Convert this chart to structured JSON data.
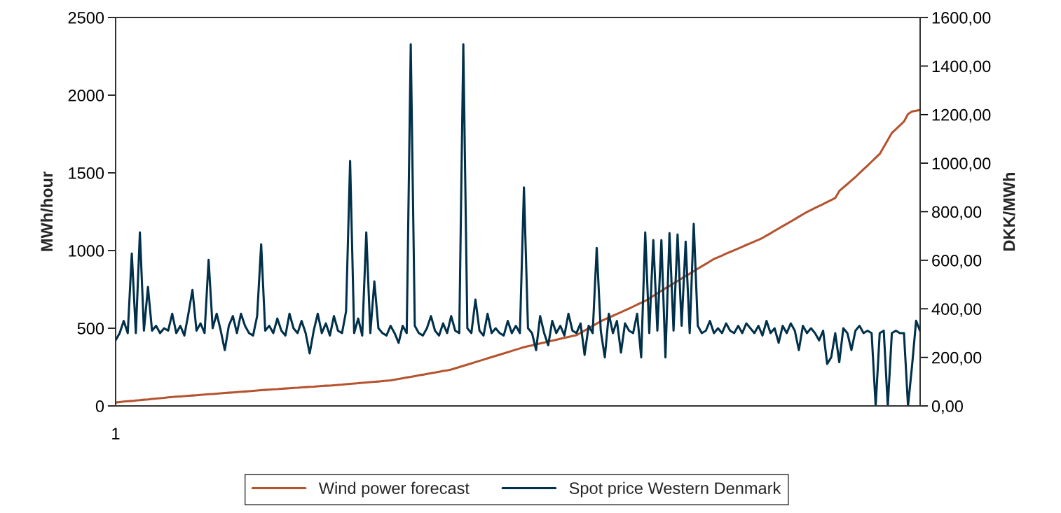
{
  "chart_data": {
    "type": "line",
    "ylabel": "MWh/hour",
    "y2label": "DKK/MWh",
    "categories": [
      "1",
      null,
      null,
      null,
      null,
      null,
      null,
      null,
      null,
      null,
      null,
      null,
      null,
      null,
      null,
      null,
      null,
      null,
      null,
      null,
      null,
      null,
      null,
      null,
      null,
      null,
      null,
      null,
      null,
      null,
      null,
      null,
      null,
      null,
      null,
      null,
      null,
      null,
      null,
      null,
      null,
      null,
      null,
      null,
      null,
      null,
      null,
      null,
      null,
      null,
      null,
      null,
      null,
      null,
      null,
      null,
      null,
      null,
      null,
      null,
      null,
      null,
      null,
      null,
      null,
      null,
      null,
      null,
      null,
      null,
      null,
      null,
      null,
      null,
      null,
      null,
      null,
      null,
      null,
      null,
      null,
      null,
      null,
      null,
      null,
      null,
      null,
      null,
      null,
      null,
      null,
      null,
      null,
      null,
      null,
      null,
      null,
      null,
      null,
      null,
      null,
      null,
      null,
      null,
      null,
      null,
      null,
      null,
      null,
      null,
      null,
      null,
      null,
      null,
      null,
      null,
      null,
      null,
      null,
      null,
      null,
      null,
      null,
      null,
      null,
      null,
      null,
      null,
      null,
      null,
      null,
      null,
      null,
      null,
      null,
      null,
      null,
      null,
      null,
      null,
      null,
      null,
      null,
      null,
      null,
      null,
      null,
      null,
      null,
      null,
      null,
      null,
      null,
      null,
      null,
      null,
      null,
      null,
      null,
      null,
      null,
      null,
      null,
      null,
      null,
      null,
      null,
      null,
      null,
      null,
      null,
      null,
      null,
      null,
      null,
      null,
      null,
      null,
      null,
      null,
      null,
      null,
      null,
      null,
      null,
      null,
      null,
      null,
      null,
      null,
      null,
      null,
      null,
      null,
      null,
      null,
      null,
      null,
      null,
      null
    ],
    "series": [
      {
        "name": "Wind power forecast",
        "color": "#b5532f",
        "values": [
          22,
          25,
          28,
          30,
          32,
          35,
          37,
          40,
          42,
          45,
          47,
          50,
          52,
          55,
          57,
          60,
          61,
          63,
          65,
          67,
          69,
          71,
          73,
          75,
          77,
          79,
          81,
          83,
          85,
          87,
          89,
          91,
          93,
          95,
          97,
          99,
          101,
          103,
          105,
          107,
          108,
          110,
          112,
          114,
          116,
          117,
          119,
          121,
          123,
          124,
          126,
          128,
          130,
          131,
          133,
          135,
          137,
          140,
          142,
          144,
          146,
          149,
          151,
          153,
          155,
          157,
          160,
          162,
          164,
          169,
          173,
          178,
          183,
          187,
          192,
          197,
          201,
          206,
          211,
          215,
          220,
          225,
          229,
          234,
          242,
          250,
          258,
          266,
          274,
          282,
          290,
          298,
          306,
          314,
          322,
          330,
          338,
          346,
          354,
          362,
          370,
          378,
          384,
          390,
          396,
          402,
          408,
          414,
          420,
          426,
          432,
          438,
          444,
          450,
          455,
          470,
          485,
          500,
          515,
          530,
          545,
          557,
          569,
          580,
          592,
          603,
          615,
          627,
          639,
          652,
          664,
          676,
          692,
          708,
          725,
          741,
          757,
          772,
          788,
          804,
          820,
          836,
          851,
          867,
          883,
          899,
          914,
          930,
          946,
          957,
          968,
          980,
          991,
          1002,
          1013,
          1024,
          1036,
          1047,
          1058,
          1069,
          1081,
          1096,
          1111,
          1127,
          1142,
          1157,
          1172,
          1187,
          1202,
          1218,
          1233,
          1248,
          1261,
          1274,
          1287,
          1299,
          1312,
          1325,
          1338,
          1383,
          1406,
          1428,
          1451,
          1473,
          1498,
          1523,
          1547,
          1572,
          1597,
          1622,
          1667,
          1712,
          1757,
          1781,
          1806,
          1830,
          1878,
          1895,
          1900,
          1905
        ]
      },
      {
        "name": "Spot price Western Denmark",
        "color": "#00304a",
        "axis": "y2",
        "values": [
          270,
          300,
          350,
          300,
          628,
          300,
          715,
          310,
          490,
          310,
          330,
          300,
          320,
          310,
          380,
          300,
          330,
          290,
          380,
          478,
          310,
          340,
          300,
          602,
          320,
          380,
          310,
          230,
          330,
          370,
          300,
          380,
          330,
          300,
          290,
          370,
          666,
          310,
          330,
          300,
          360,
          310,
          290,
          380,
          320,
          300,
          350,
          300,
          216,
          310,
          380,
          300,
          340,
          290,
          370,
          310,
          300,
          390,
          1009,
          300,
          360,
          290,
          715,
          300,
          513,
          320,
          300,
          290,
          330,
          300,
          260,
          330,
          300,
          1490,
          330,
          300,
          290,
          320,
          370,
          310,
          290,
          340,
          300,
          370,
          310,
          300,
          1490,
          320,
          300,
          438,
          310,
          290,
          380,
          300,
          320,
          300,
          290,
          350,
          300,
          330,
          300,
          900,
          320,
          300,
          230,
          370,
          300,
          250,
          350,
          300,
          330,
          290,
          380,
          310,
          300,
          340,
          210,
          330,
          300,
          651,
          310,
          200,
          380,
          300,
          350,
          220,
          340,
          310,
          300,
          380,
          200,
          715,
          300,
          683,
          310,
          683,
          200,
          712,
          310,
          706,
          330,
          677,
          300,
          750,
          330,
          300,
          310,
          350,
          300,
          320,
          300,
          340,
          310,
          300,
          330,
          300,
          340,
          320,
          300,
          330,
          290,
          350,
          300,
          320,
          260,
          330,
          300,
          340,
          310,
          230,
          330,
          300,
          320,
          300,
          270,
          310,
          173,
          200,
          300,
          180,
          320,
          300,
          230,
          310,
          330,
          300,
          310,
          300,
          0,
          300,
          310,
          0,
          300,
          310,
          300,
          300,
          0,
          165,
          351,
          308
        ]
      }
    ],
    "ylim": [
      0,
      2500
    ],
    "yticks": [
      0,
      500,
      1000,
      1500,
      2000,
      2500
    ],
    "y2lim": [
      0,
      1600
    ],
    "y2ticks": [
      {
        "value": 0,
        "label": "0,00"
      },
      {
        "value": 200,
        "label": "200,00"
      },
      {
        "value": 400,
        "label": "400,00"
      },
      {
        "value": 600,
        "label": "600,00"
      },
      {
        "value": 800,
        "label": "800,00"
      },
      {
        "value": 1000,
        "label": "1000,00"
      },
      {
        "value": 1200,
        "label": "1200,00"
      },
      {
        "value": 1400,
        "label": "1400,00"
      },
      {
        "value": 1600,
        "label": "1600,00"
      }
    ],
    "grid": false,
    "legend": "bottom"
  }
}
